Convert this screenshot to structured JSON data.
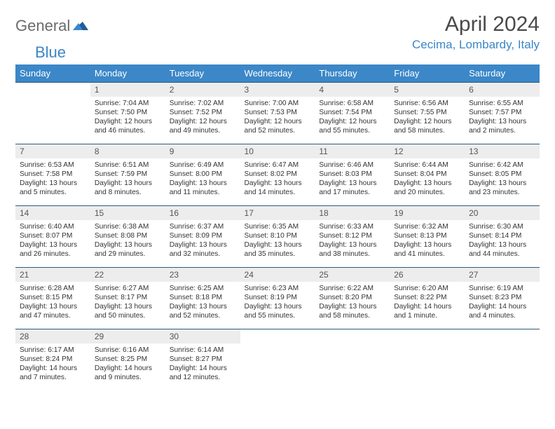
{
  "logo": {
    "text1": "General",
    "text2": "Blue",
    "color_general": "#6b6b6b",
    "color_blue": "#3b87c8"
  },
  "header": {
    "month_title": "April 2024",
    "location": "Cecima, Lombardy, Italy"
  },
  "colors": {
    "dow_bg": "#3b87c8",
    "dow_fg": "#ffffff",
    "band_bg": "#ededed",
    "rule": "#2f5a7a",
    "text": "#333333",
    "title_color": "#4a4a4a"
  },
  "dow": [
    "Sunday",
    "Monday",
    "Tuesday",
    "Wednesday",
    "Thursday",
    "Friday",
    "Saturday"
  ],
  "weeks": [
    [
      {
        "empty": true
      },
      {
        "num": "1",
        "sunrise": "Sunrise: 7:04 AM",
        "sunset": "Sunset: 7:50 PM",
        "daylight": "Daylight: 12 hours and 46 minutes."
      },
      {
        "num": "2",
        "sunrise": "Sunrise: 7:02 AM",
        "sunset": "Sunset: 7:52 PM",
        "daylight": "Daylight: 12 hours and 49 minutes."
      },
      {
        "num": "3",
        "sunrise": "Sunrise: 7:00 AM",
        "sunset": "Sunset: 7:53 PM",
        "daylight": "Daylight: 12 hours and 52 minutes."
      },
      {
        "num": "4",
        "sunrise": "Sunrise: 6:58 AM",
        "sunset": "Sunset: 7:54 PM",
        "daylight": "Daylight: 12 hours and 55 minutes."
      },
      {
        "num": "5",
        "sunrise": "Sunrise: 6:56 AM",
        "sunset": "Sunset: 7:55 PM",
        "daylight": "Daylight: 12 hours and 58 minutes."
      },
      {
        "num": "6",
        "sunrise": "Sunrise: 6:55 AM",
        "sunset": "Sunset: 7:57 PM",
        "daylight": "Daylight: 13 hours and 2 minutes."
      }
    ],
    [
      {
        "num": "7",
        "sunrise": "Sunrise: 6:53 AM",
        "sunset": "Sunset: 7:58 PM",
        "daylight": "Daylight: 13 hours and 5 minutes."
      },
      {
        "num": "8",
        "sunrise": "Sunrise: 6:51 AM",
        "sunset": "Sunset: 7:59 PM",
        "daylight": "Daylight: 13 hours and 8 minutes."
      },
      {
        "num": "9",
        "sunrise": "Sunrise: 6:49 AM",
        "sunset": "Sunset: 8:00 PM",
        "daylight": "Daylight: 13 hours and 11 minutes."
      },
      {
        "num": "10",
        "sunrise": "Sunrise: 6:47 AM",
        "sunset": "Sunset: 8:02 PM",
        "daylight": "Daylight: 13 hours and 14 minutes."
      },
      {
        "num": "11",
        "sunrise": "Sunrise: 6:46 AM",
        "sunset": "Sunset: 8:03 PM",
        "daylight": "Daylight: 13 hours and 17 minutes."
      },
      {
        "num": "12",
        "sunrise": "Sunrise: 6:44 AM",
        "sunset": "Sunset: 8:04 PM",
        "daylight": "Daylight: 13 hours and 20 minutes."
      },
      {
        "num": "13",
        "sunrise": "Sunrise: 6:42 AM",
        "sunset": "Sunset: 8:05 PM",
        "daylight": "Daylight: 13 hours and 23 minutes."
      }
    ],
    [
      {
        "num": "14",
        "sunrise": "Sunrise: 6:40 AM",
        "sunset": "Sunset: 8:07 PM",
        "daylight": "Daylight: 13 hours and 26 minutes."
      },
      {
        "num": "15",
        "sunrise": "Sunrise: 6:38 AM",
        "sunset": "Sunset: 8:08 PM",
        "daylight": "Daylight: 13 hours and 29 minutes."
      },
      {
        "num": "16",
        "sunrise": "Sunrise: 6:37 AM",
        "sunset": "Sunset: 8:09 PM",
        "daylight": "Daylight: 13 hours and 32 minutes."
      },
      {
        "num": "17",
        "sunrise": "Sunrise: 6:35 AM",
        "sunset": "Sunset: 8:10 PM",
        "daylight": "Daylight: 13 hours and 35 minutes."
      },
      {
        "num": "18",
        "sunrise": "Sunrise: 6:33 AM",
        "sunset": "Sunset: 8:12 PM",
        "daylight": "Daylight: 13 hours and 38 minutes."
      },
      {
        "num": "19",
        "sunrise": "Sunrise: 6:32 AM",
        "sunset": "Sunset: 8:13 PM",
        "daylight": "Daylight: 13 hours and 41 minutes."
      },
      {
        "num": "20",
        "sunrise": "Sunrise: 6:30 AM",
        "sunset": "Sunset: 8:14 PM",
        "daylight": "Daylight: 13 hours and 44 minutes."
      }
    ],
    [
      {
        "num": "21",
        "sunrise": "Sunrise: 6:28 AM",
        "sunset": "Sunset: 8:15 PM",
        "daylight": "Daylight: 13 hours and 47 minutes."
      },
      {
        "num": "22",
        "sunrise": "Sunrise: 6:27 AM",
        "sunset": "Sunset: 8:17 PM",
        "daylight": "Daylight: 13 hours and 50 minutes."
      },
      {
        "num": "23",
        "sunrise": "Sunrise: 6:25 AM",
        "sunset": "Sunset: 8:18 PM",
        "daylight": "Daylight: 13 hours and 52 minutes."
      },
      {
        "num": "24",
        "sunrise": "Sunrise: 6:23 AM",
        "sunset": "Sunset: 8:19 PM",
        "daylight": "Daylight: 13 hours and 55 minutes."
      },
      {
        "num": "25",
        "sunrise": "Sunrise: 6:22 AM",
        "sunset": "Sunset: 8:20 PM",
        "daylight": "Daylight: 13 hours and 58 minutes."
      },
      {
        "num": "26",
        "sunrise": "Sunrise: 6:20 AM",
        "sunset": "Sunset: 8:22 PM",
        "daylight": "Daylight: 14 hours and 1 minute."
      },
      {
        "num": "27",
        "sunrise": "Sunrise: 6:19 AM",
        "sunset": "Sunset: 8:23 PM",
        "daylight": "Daylight: 14 hours and 4 minutes."
      }
    ],
    [
      {
        "num": "28",
        "sunrise": "Sunrise: 6:17 AM",
        "sunset": "Sunset: 8:24 PM",
        "daylight": "Daylight: 14 hours and 7 minutes."
      },
      {
        "num": "29",
        "sunrise": "Sunrise: 6:16 AM",
        "sunset": "Sunset: 8:25 PM",
        "daylight": "Daylight: 14 hours and 9 minutes."
      },
      {
        "num": "30",
        "sunrise": "Sunrise: 6:14 AM",
        "sunset": "Sunset: 8:27 PM",
        "daylight": "Daylight: 14 hours and 12 minutes."
      },
      {
        "empty": true
      },
      {
        "empty": true
      },
      {
        "empty": true
      },
      {
        "empty": true
      }
    ]
  ]
}
